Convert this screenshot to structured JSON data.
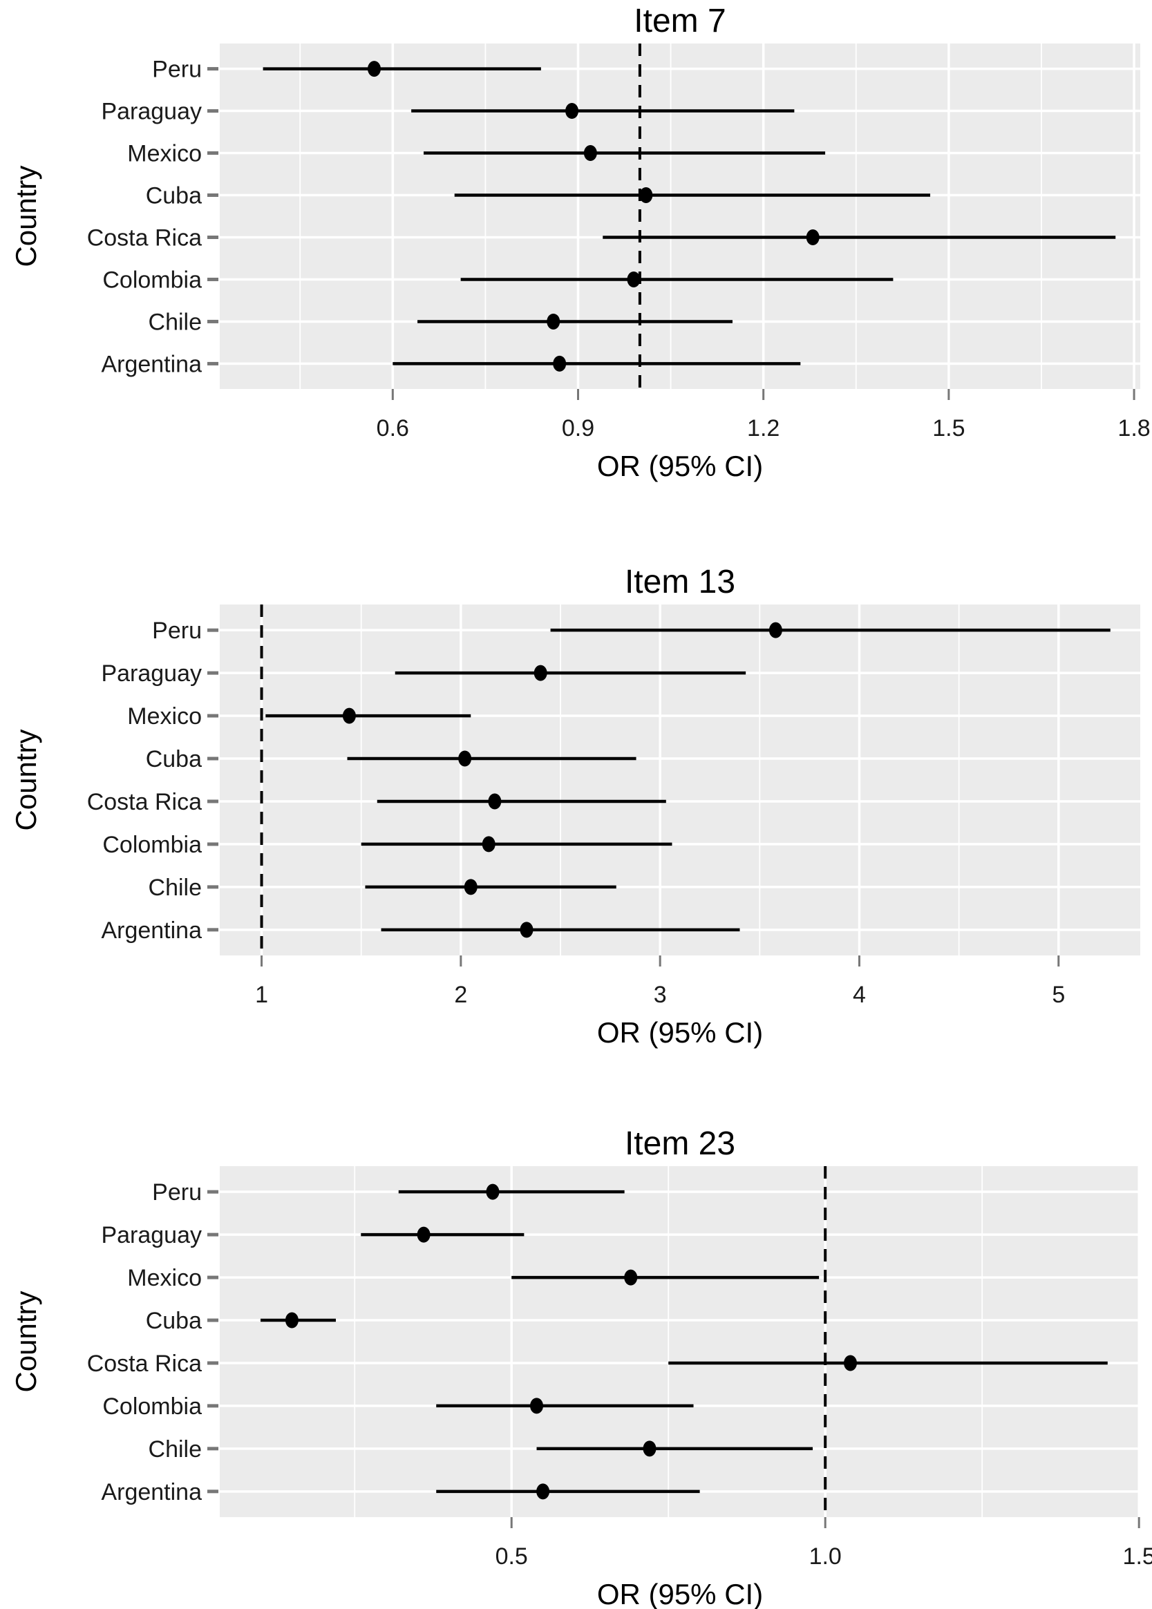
{
  "figure": {
    "xlabel": "OR (95% CI)",
    "ylabel": "Country",
    "countries_top_to_bottom": [
      "Peru",
      "Paraguay",
      "Mexico",
      "Cuba",
      "Costa Rica",
      "Colombia",
      "Chile",
      "Argentina"
    ]
  },
  "colors": {
    "page_background": "#ffffff",
    "panel_background": "#EBEBEB",
    "grid_major": "#FFFFFF",
    "grid_minor": "#FFFFFF",
    "axis_tick": "#777777",
    "data_black": "#000000",
    "reference_line": "#000000",
    "text": "#000000"
  },
  "chart_data": [
    {
      "type": "scatter",
      "subtype": "forest-plot-dot-whisker",
      "title": "Item 7",
      "xlabel": "OR (95% CI)",
      "ylabel": "Country",
      "legend": "none",
      "grid": true,
      "categories": [
        "Peru",
        "Paraguay",
        "Mexico",
        "Cuba",
        "Costa Rica",
        "Colombia",
        "Chile",
        "Argentina"
      ],
      "or_values": [
        0.57,
        0.89,
        0.92,
        1.01,
        1.28,
        0.99,
        0.86,
        0.87
      ],
      "ci_low": [
        0.39,
        0.63,
        0.65,
        0.7,
        0.94,
        0.71,
        0.64,
        0.6
      ],
      "ci_high": [
        0.84,
        1.25,
        1.3,
        1.47,
        1.77,
        1.41,
        1.15,
        1.26
      ],
      "reference_line_x": 1.0,
      "xlim": [
        0.32,
        1.81
      ],
      "xticks": [
        0.6,
        0.9,
        1.2,
        1.5,
        1.8
      ],
      "xtick_labels": [
        "0.6",
        "0.9",
        "1.2",
        "1.5",
        "1.8"
      ],
      "xticks_minor": [
        0.45,
        0.75,
        1.05,
        1.35,
        1.65
      ]
    },
    {
      "type": "scatter",
      "subtype": "forest-plot-dot-whisker",
      "title": "Item 13",
      "xlabel": "OR (95% CI)",
      "ylabel": "Country",
      "legend": "none",
      "grid": true,
      "categories": [
        "Peru",
        "Paraguay",
        "Mexico",
        "Cuba",
        "Costa Rica",
        "Colombia",
        "Chile",
        "Argentina"
      ],
      "or_values": [
        3.58,
        2.4,
        1.44,
        2.02,
        2.17,
        2.14,
        2.05,
        2.33
      ],
      "ci_low": [
        2.45,
        1.67,
        1.02,
        1.43,
        1.58,
        1.5,
        1.52,
        1.6
      ],
      "ci_high": [
        5.26,
        3.43,
        2.05,
        2.88,
        3.03,
        3.06,
        2.78,
        3.4
      ],
      "reference_line_x": 1.0,
      "xlim": [
        0.79,
        5.41
      ],
      "xticks": [
        1,
        2,
        3,
        4,
        5
      ],
      "xtick_labels": [
        "1",
        "2",
        "3",
        "4",
        "5"
      ],
      "xticks_minor": [
        1.5,
        2.5,
        3.5,
        4.5
      ]
    },
    {
      "type": "scatter",
      "subtype": "forest-plot-dot-whisker",
      "title": "Item 23",
      "xlabel": "OR (95% CI)",
      "ylabel": "Country",
      "legend": "none",
      "grid": true,
      "categories": [
        "Peru",
        "Paraguay",
        "Mexico",
        "Cuba",
        "Costa Rica",
        "Colombia",
        "Chile",
        "Argentina"
      ],
      "or_values": [
        0.47,
        0.36,
        0.69,
        0.15,
        1.04,
        0.54,
        0.72,
        0.55
      ],
      "ci_low": [
        0.32,
        0.26,
        0.5,
        0.1,
        0.75,
        0.38,
        0.54,
        0.38
      ],
      "ci_high": [
        0.68,
        0.52,
        0.99,
        0.22,
        1.45,
        0.79,
        0.98,
        0.8
      ],
      "reference_line_x": 1.0,
      "xlim": [
        0.035,
        1.502
      ],
      "xticks": [
        0.5,
        1.0,
        1.5
      ],
      "xtick_labels": [
        "0.5",
        "1.0",
        "1.5"
      ],
      "xticks_minor": [
        0.25,
        0.75,
        1.25
      ]
    }
  ]
}
